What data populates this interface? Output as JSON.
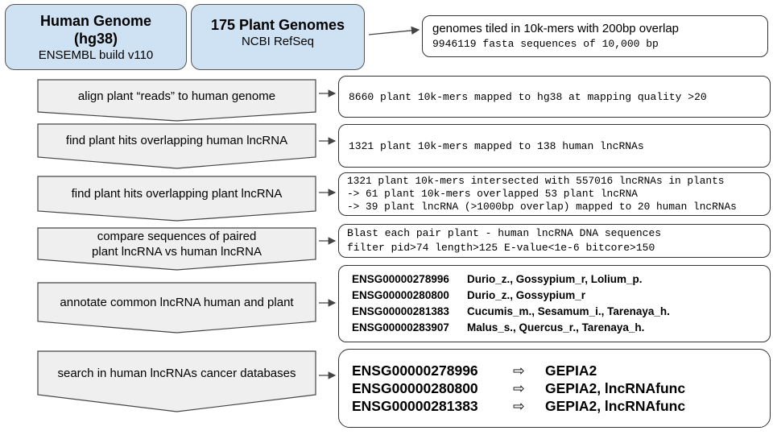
{
  "sources": {
    "human": {
      "title": "Human Genome",
      "title2": "(hg38)",
      "subtitle": "ENSEMBL build v110"
    },
    "plant": {
      "title": "175 Plant Genomes",
      "subtitle": "NCBI RefSeq"
    }
  },
  "tiling": {
    "line1": "genomes tiled in 10k-mers with 200bp overlap",
    "line2": "9946119 fasta sequences of 10,000 bp"
  },
  "steps": [
    {
      "label": "align plant “reads” to human genome",
      "label2": "",
      "result": [
        "8660 plant 10k-mers mapped to hg38 at mapping quality >20"
      ]
    },
    {
      "label": "find plant hits overlapping human lncRNA",
      "label2": "",
      "result": [
        "1321 plant 10k-mers mapped to 138 human lncRNAs"
      ]
    },
    {
      "label": "find plant hits overlapping plant lncRNA",
      "label2": "",
      "result": [
        "1321 plant 10k-mers intersected with 557016 lncRNAs in plants",
        "-> 61 plant 10k-mers overlapped 53 plant lncRNA",
        "-> 39 plant lncRNA (>1000bp overlap) mapped to 20 human lncRNAs"
      ]
    },
    {
      "label": "compare sequences of paired",
      "label2": "plant lncRNA vs human lncRNA",
      "result": [
        "Blast each pair plant - human lncRNA DNA sequences",
        "filter pid>74 length>125 E-value<1e-6 bitcore>150"
      ]
    },
    {
      "label": "annotate common lncRNA human and plant",
      "label2": "",
      "result": [
        {
          "id": "ENSG00000278996",
          "species": "Durio_z., Gossypium_r, Lolium_p."
        },
        {
          "id": "ENSG00000280800",
          "species": "Durio_z., Gossypium_r"
        },
        {
          "id": "ENSG00000281383",
          "species": "Cucumis_m., Sesamum_i., Tarenaya_h."
        },
        {
          "id": "ENSG00000283907",
          "species": "Malus_s., Quercus_r., Tarenaya_h."
        }
      ]
    },
    {
      "label": "search in human lncRNAs cancer databases",
      "label2": "",
      "result": [
        {
          "id": "ENSG00000278996",
          "db": "GEPIA2"
        },
        {
          "id": "ENSG00000280800",
          "db": "GEPIA2, lncRNAfunc"
        },
        {
          "id": "ENSG00000281383",
          "db": "GEPIA2, lncRNAfunc"
        }
      ]
    }
  ],
  "colors": {
    "source_fill": "#cfe2f3",
    "step_fill": "#efefef",
    "stroke": "#444444"
  },
  "icons": {
    "db_arrow": "outline-right-arrow-icon"
  }
}
